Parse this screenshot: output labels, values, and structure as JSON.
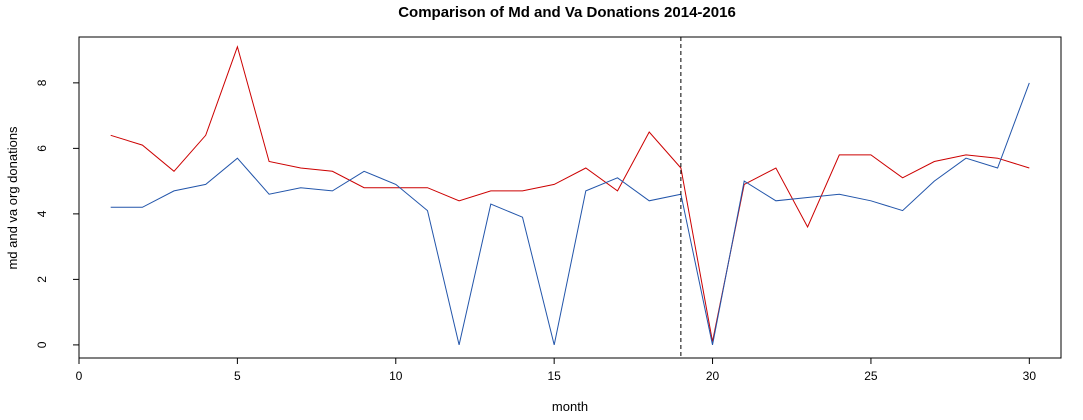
{
  "chart_data": {
    "type": "line",
    "title": "Comparison of Md and Va Donations 2014-2016",
    "xlabel": "month",
    "ylabel": "md and va org donations",
    "xlim": [
      0,
      31
    ],
    "ylim": [
      -0.4,
      9.4
    ],
    "x_ticks": [
      0,
      5,
      10,
      15,
      20,
      25,
      30
    ],
    "y_ticks": [
      0,
      2,
      4,
      6,
      8
    ],
    "x": [
      1,
      2,
      3,
      4,
      5,
      6,
      7,
      8,
      9,
      10,
      11,
      12,
      13,
      14,
      15,
      16,
      17,
      18,
      19,
      20,
      21,
      22,
      23,
      24,
      25,
      26,
      27,
      28,
      29,
      30
    ],
    "series": [
      {
        "color": "#cc0000",
        "values": [
          6.4,
          6.1,
          5.3,
          6.4,
          9.1,
          5.6,
          5.4,
          5.3,
          4.8,
          4.8,
          4.8,
          4.4,
          4.7,
          4.7,
          4.9,
          5.4,
          4.7,
          6.5,
          5.4,
          0.1,
          4.9,
          5.4,
          3.6,
          5.8,
          5.8,
          5.1,
          5.6,
          5.8,
          5.7,
          5.4
        ]
      },
      {
        "color": "#2255aa",
        "values": [
          4.2,
          4.2,
          4.7,
          4.9,
          5.7,
          4.6,
          4.8,
          4.7,
          5.3,
          4.9,
          4.1,
          0.0,
          4.3,
          3.9,
          0.0,
          4.7,
          5.1,
          4.4,
          4.6,
          0.0,
          5.0,
          4.4,
          4.5,
          4.6,
          4.4,
          4.1,
          5.0,
          5.7,
          5.4,
          8.0
        ]
      }
    ],
    "vline": {
      "x": 19,
      "style": "dashed",
      "color": "#000000"
    },
    "grid": false,
    "legend": false
  }
}
